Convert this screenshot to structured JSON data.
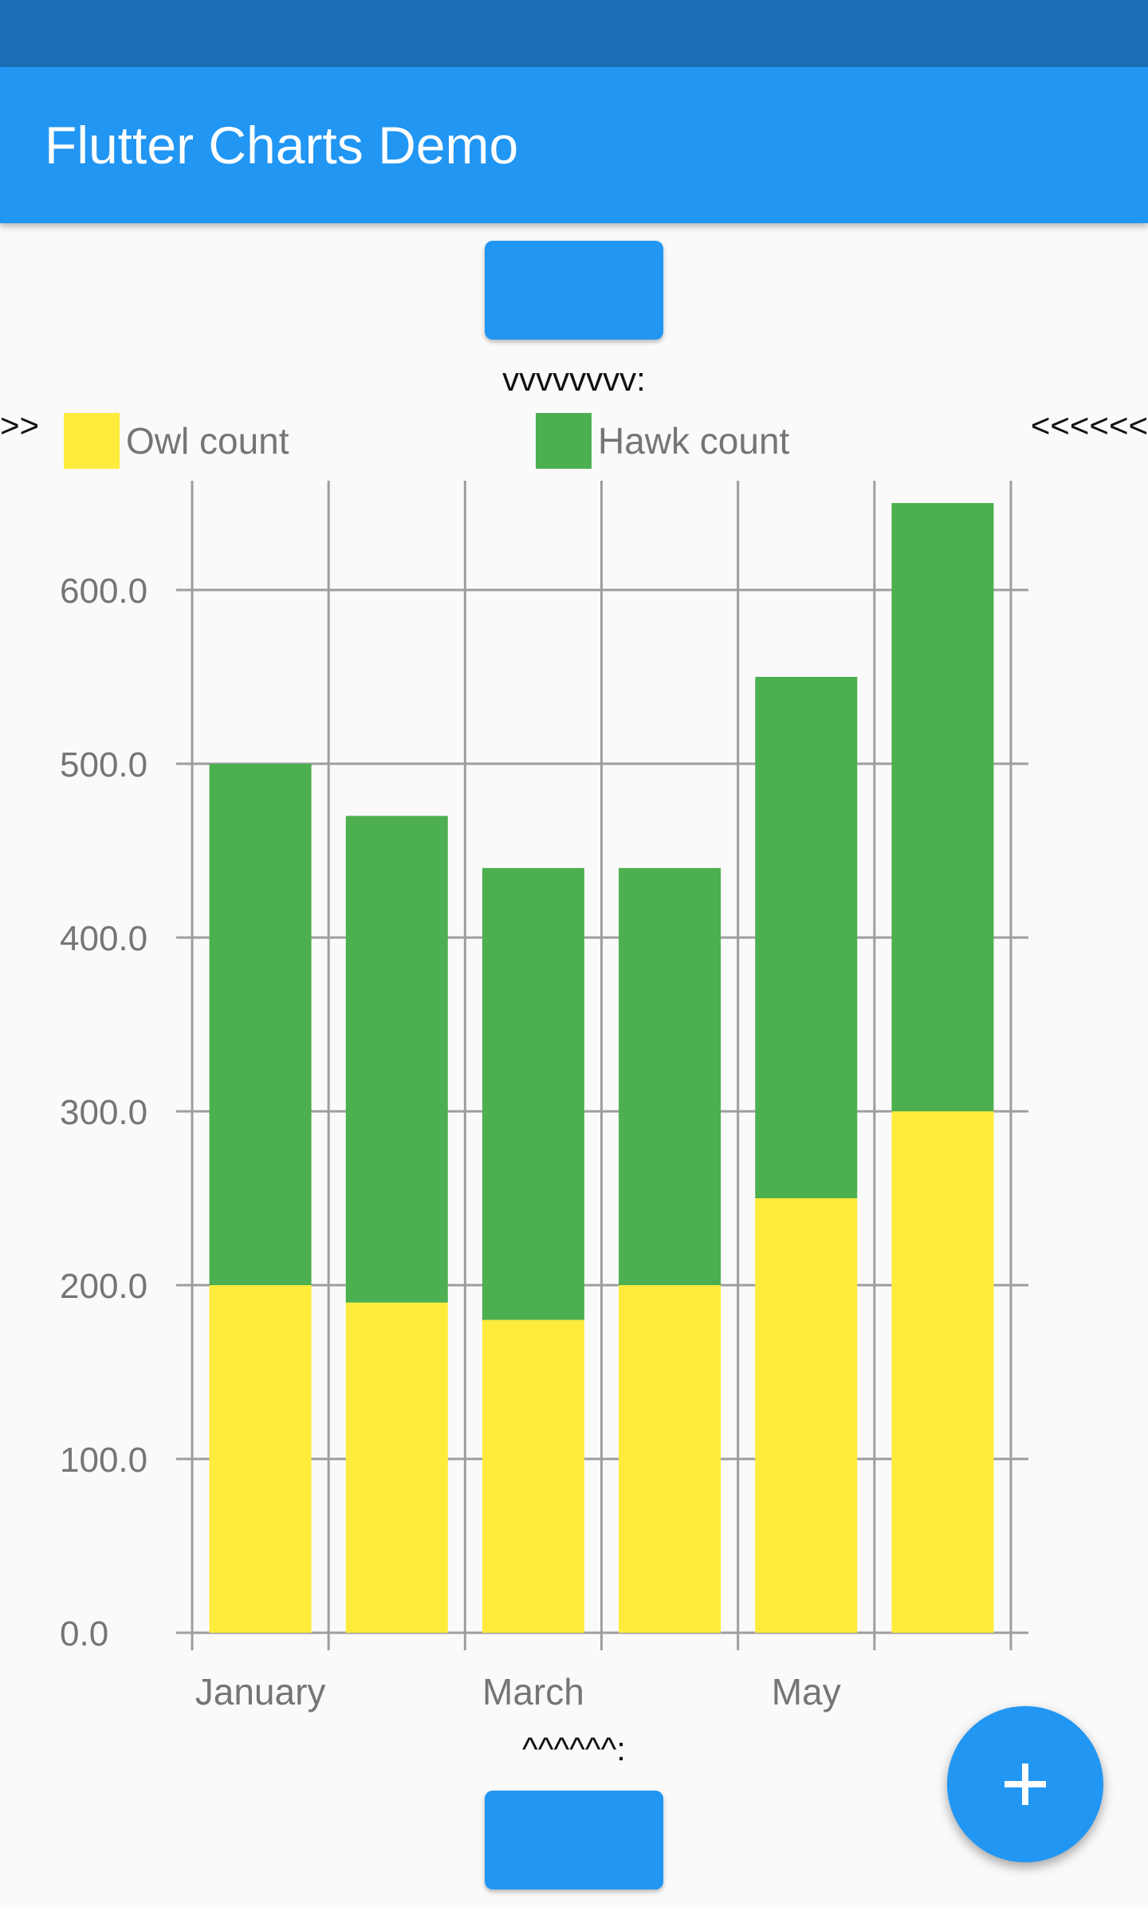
{
  "app_bar": {
    "title": "Flutter Charts Demo"
  },
  "markers": {
    "top": "vvvvvvvv:",
    "bottom": "^^^^^^:",
    "left": ">>",
    "right": "<<<<<<"
  },
  "colors": {
    "primary": "#2196f3",
    "status_bar": "#1a6fb5",
    "owl": "#ffeb3b",
    "hawk": "#4caf50"
  },
  "fab": {
    "icon": "plus-icon"
  },
  "chart_data": {
    "type": "bar",
    "stacked": true,
    "categories": [
      "January",
      "",
      "March",
      "",
      "May",
      ""
    ],
    "series": [
      {
        "name": "Owl count",
        "color": "#ffeb3b",
        "values": [
          200,
          190,
          180,
          200,
          250,
          300
        ]
      },
      {
        "name": "Hawk count",
        "color": "#4caf50",
        "values": [
          300,
          280,
          260,
          240,
          300,
          350
        ]
      }
    ],
    "yticks": [
      "0.0",
      "100.0",
      "200.0",
      "300.0",
      "400.0",
      "500.0",
      "600.0"
    ],
    "ylim": [
      0,
      650
    ],
    "grid": true,
    "legend": "top"
  }
}
